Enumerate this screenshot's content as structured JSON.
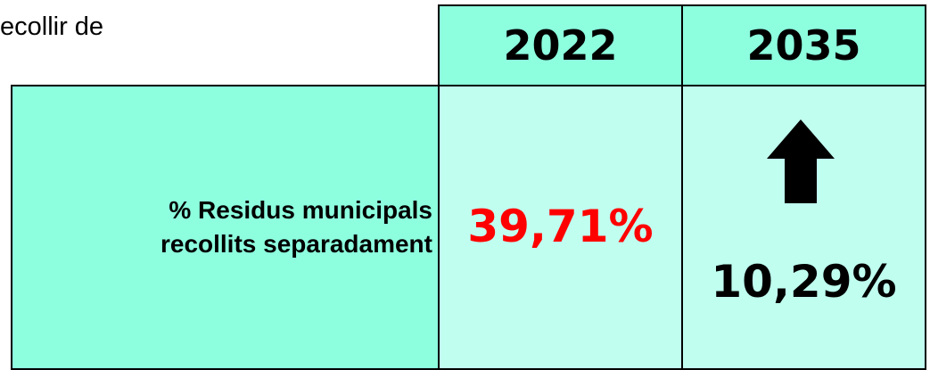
{
  "header": {
    "text": "ecollir de"
  },
  "table": {
    "columns": [
      "2022",
      "2035"
    ],
    "rows": [
      {
        "label": [
          "% Residus municipals",
          "recollits separadament"
        ],
        "cells": [
          "39,71%",
          "10,29%"
        ]
      }
    ]
  }
}
